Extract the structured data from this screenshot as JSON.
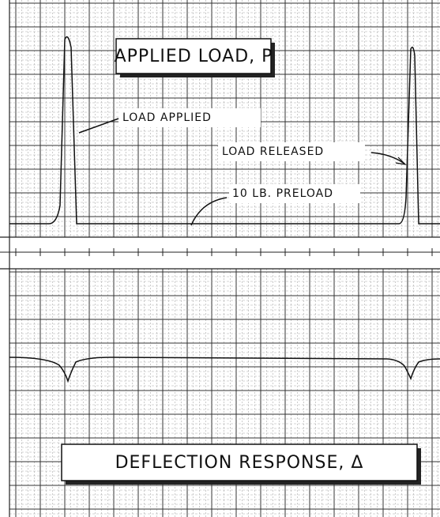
{
  "title": "APPLIED LOAD, P",
  "annotations": {
    "load_applied": "LOAD APPLIED",
    "load_released": "LOAD RELEASED",
    "preload": "10 LB. PRELOAD"
  },
  "bottom_title": "DEFLECTION RESPONSE, Δ"
}
